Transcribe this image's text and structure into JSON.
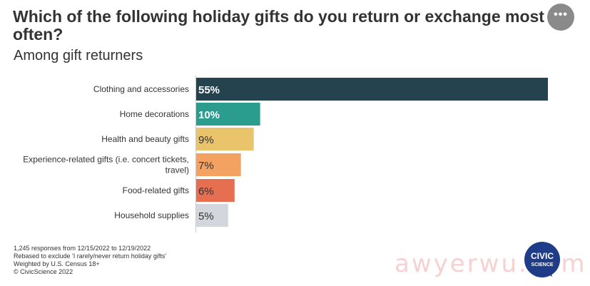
{
  "title": "Which of the following holiday gifts do you return or exchange most often?",
  "subtitle": "Among gift returners",
  "menu": {
    "icon": "more-horizontal-icon",
    "label": "•••"
  },
  "chart_data": {
    "type": "bar",
    "orientation": "horizontal",
    "categories": [
      "Clothing and accessories",
      "Home decorations",
      "Health and beauty gifts",
      "Experience-related gifts (i.e. concert tickets, travel)",
      "Food-related gifts",
      "Household supplies"
    ],
    "category_lines": [
      [
        "Clothing and accessories"
      ],
      [
        "Home decorations"
      ],
      [
        "Health and beauty gifts"
      ],
      [
        "Experience-related gifts (i.e. concert tickets,",
        "travel)"
      ],
      [
        "Food-related gifts"
      ],
      [
        "Household supplies"
      ]
    ],
    "values": [
      55,
      10,
      9,
      7,
      6,
      5
    ],
    "value_labels": [
      "55%",
      "10%",
      "9%",
      "7%",
      "6%",
      "5%"
    ],
    "colors": [
      "#25434f",
      "#2a9d8f",
      "#e9c46a",
      "#f4a261",
      "#e76f51",
      "#d3d6dc"
    ],
    "label_colors": [
      "#ffffff",
      "#ffffff",
      "#333333",
      "#333333",
      "#333333",
      "#333333"
    ],
    "xlim": [
      0,
      55
    ],
    "grid": false,
    "legend": "none"
  },
  "footnotes": [
    "1,245 responses from 12/15/2022 to 12/19/2022",
    "Rebased to exclude 'I rarely/never return holiday gifts'",
    "Weighted by U.S. Census 18+",
    "© CivicScience 2022"
  ],
  "logo": {
    "line1": "CIVIC",
    "line2": "SCIENCE",
    "color": "#1f3c88"
  },
  "watermark": "awyerwu.com"
}
